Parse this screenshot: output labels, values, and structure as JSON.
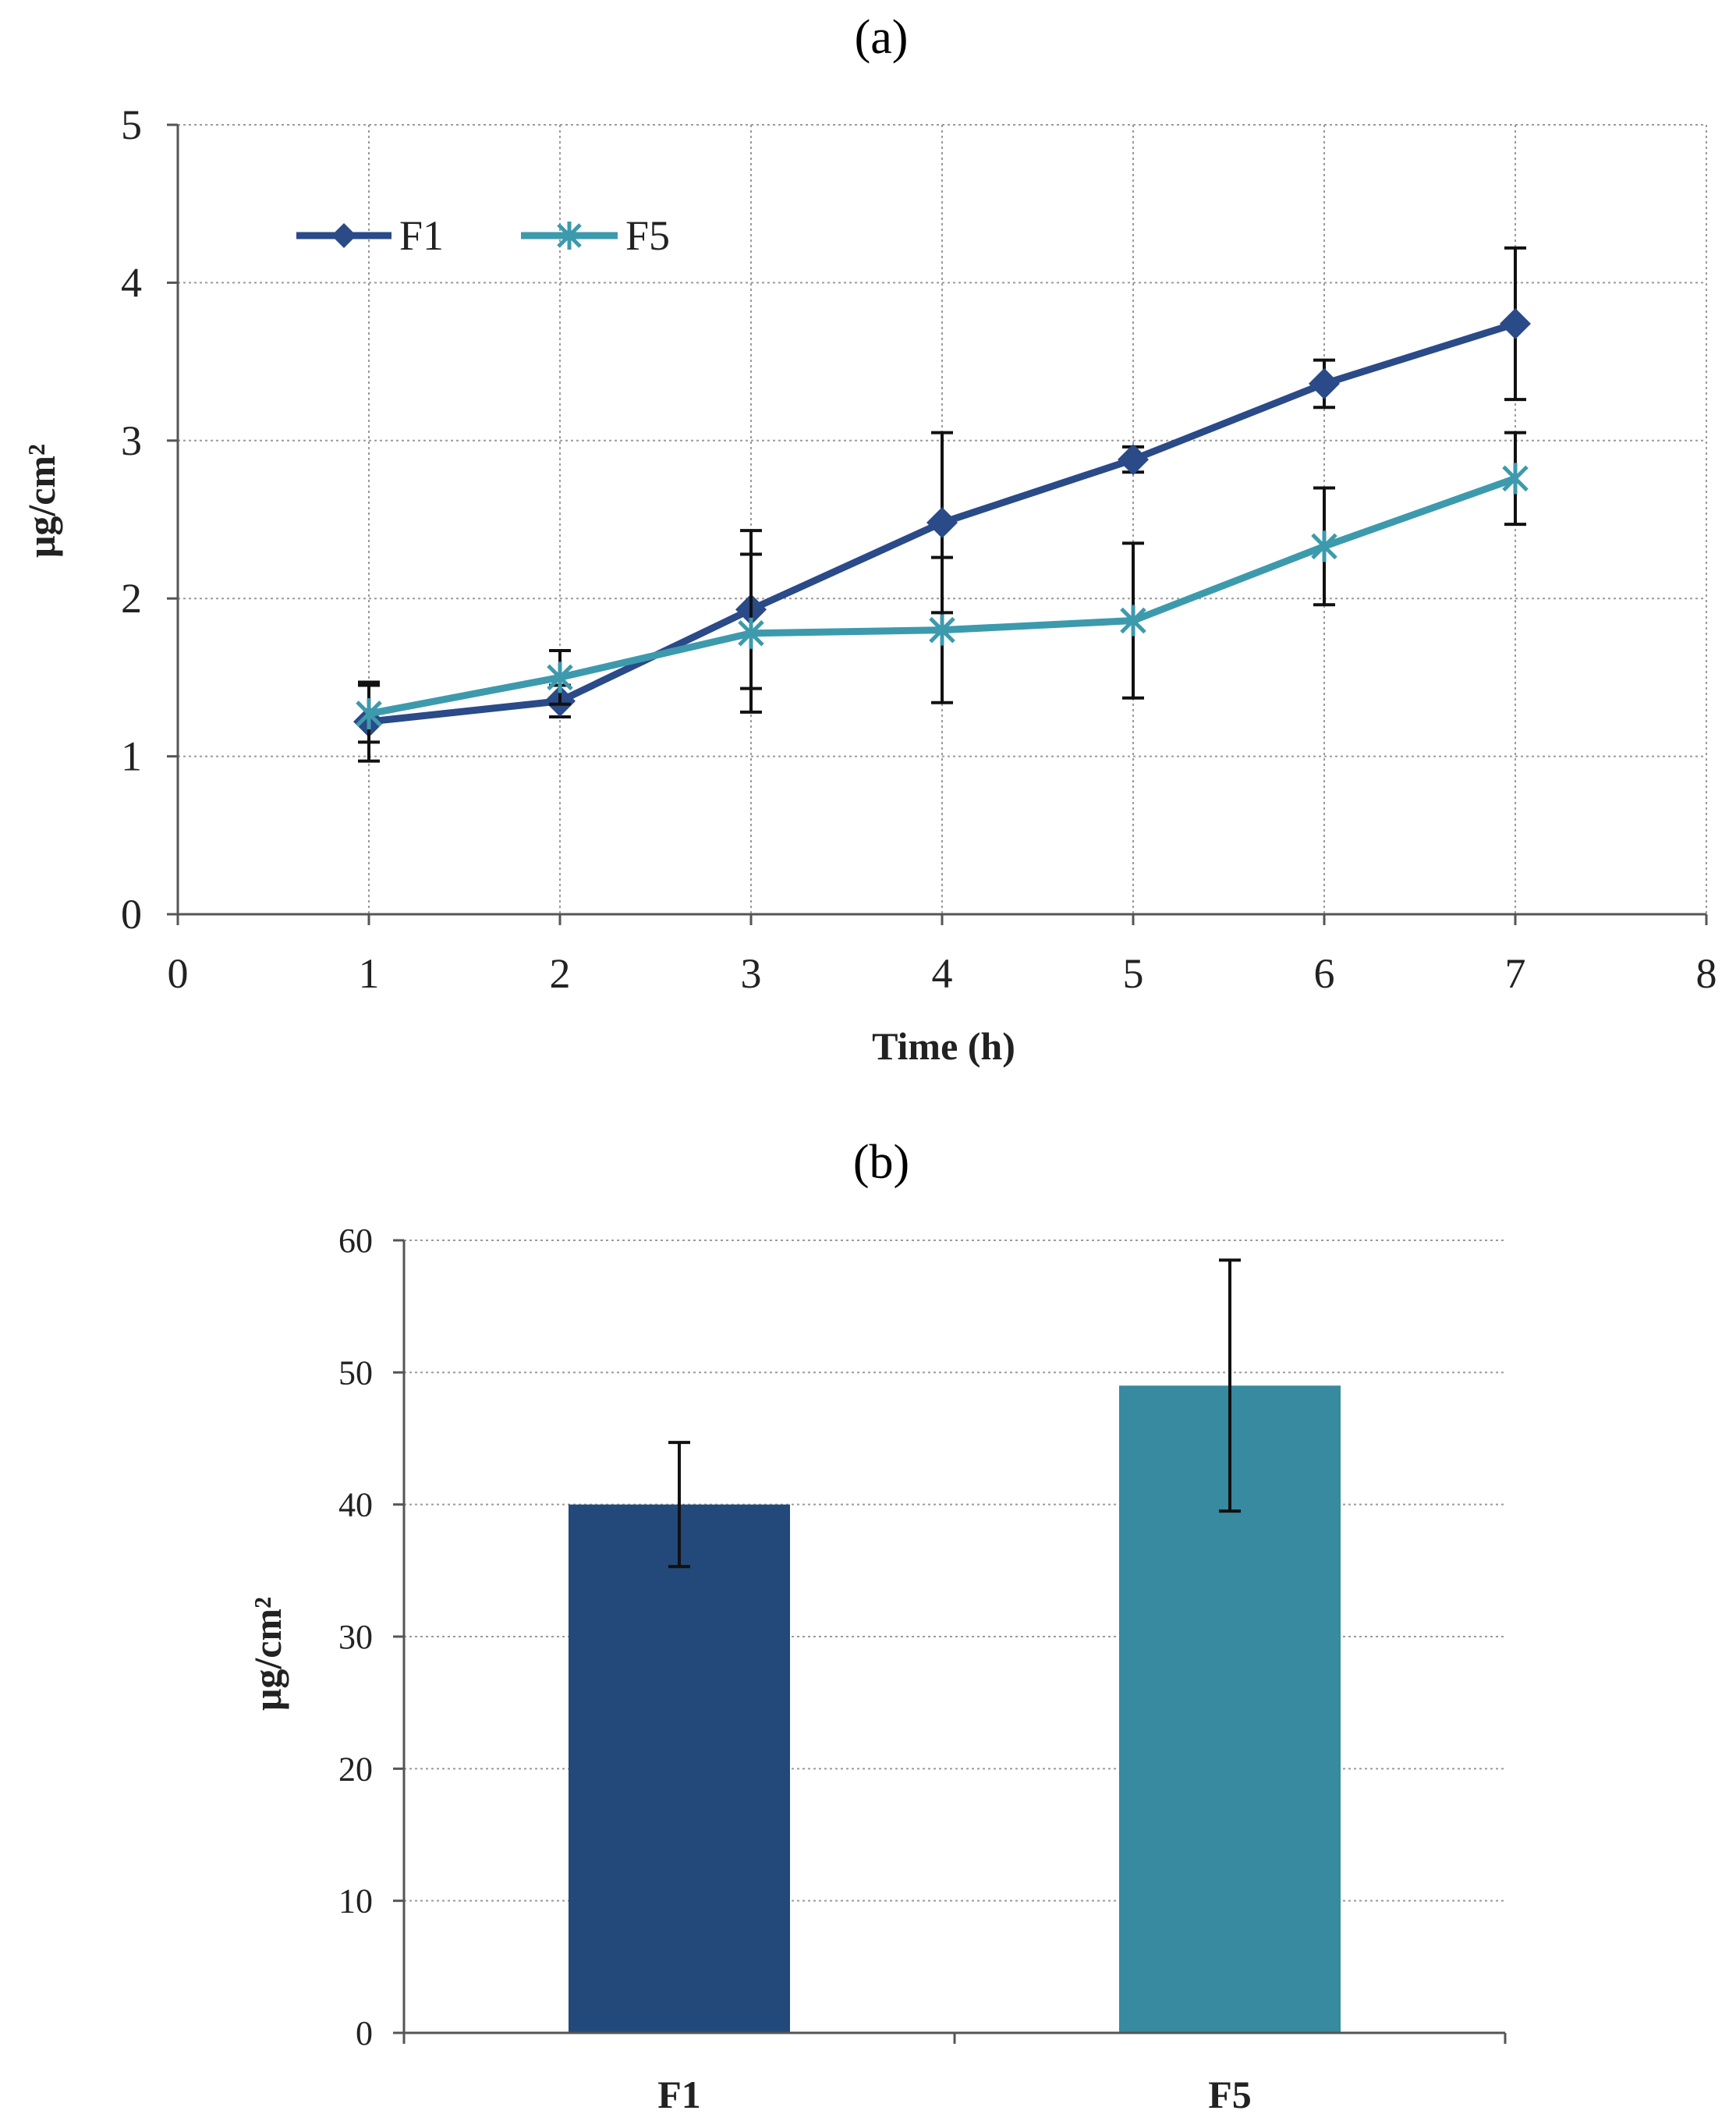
{
  "chart_data": [
    {
      "panel_label": "(a)",
      "type": "line",
      "xlabel": "Time (h)",
      "ylabel": "μg/cm²",
      "xlim": [
        0,
        8
      ],
      "ylim": [
        0,
        5
      ],
      "x_ticks": [
        "0",
        "1",
        "2",
        "3",
        "4",
        "5",
        "6",
        "7",
        "8"
      ],
      "y_ticks": [
        "0",
        "1",
        "2",
        "3",
        "4",
        "5"
      ],
      "grid": true,
      "legend": "top-left",
      "x": [
        1,
        2,
        3,
        4,
        5,
        6,
        7
      ],
      "series": [
        {
          "name": "F1",
          "color": "#2a4a88",
          "marker": "diamond",
          "values": [
            1.22,
            1.35,
            1.93,
            2.48,
            2.88,
            3.36,
            3.74
          ],
          "errors": [
            0.25,
            0.1,
            0.5,
            0.57,
            0.08,
            0.15,
            0.48
          ]
        },
        {
          "name": "F5",
          "color": "#3d9aad",
          "marker": "star",
          "values": [
            1.27,
            1.5,
            1.78,
            1.8,
            1.86,
            2.33,
            2.76
          ],
          "errors": [
            0.18,
            0.17,
            0.5,
            0.46,
            0.49,
            0.37,
            0.29
          ]
        }
      ]
    },
    {
      "panel_label": "(b)",
      "type": "bar",
      "categories": [
        "F1",
        "F5"
      ],
      "values": [
        40,
        49
      ],
      "errors": [
        4.7,
        9.5
      ],
      "colors": [
        "#22497a",
        "#378a9f"
      ],
      "ylabel": "μg/cm²",
      "xlabel": "",
      "ylim": [
        0,
        60
      ],
      "y_ticks": [
        "0",
        "10",
        "20",
        "30",
        "40",
        "50",
        "60"
      ],
      "grid": true
    }
  ]
}
